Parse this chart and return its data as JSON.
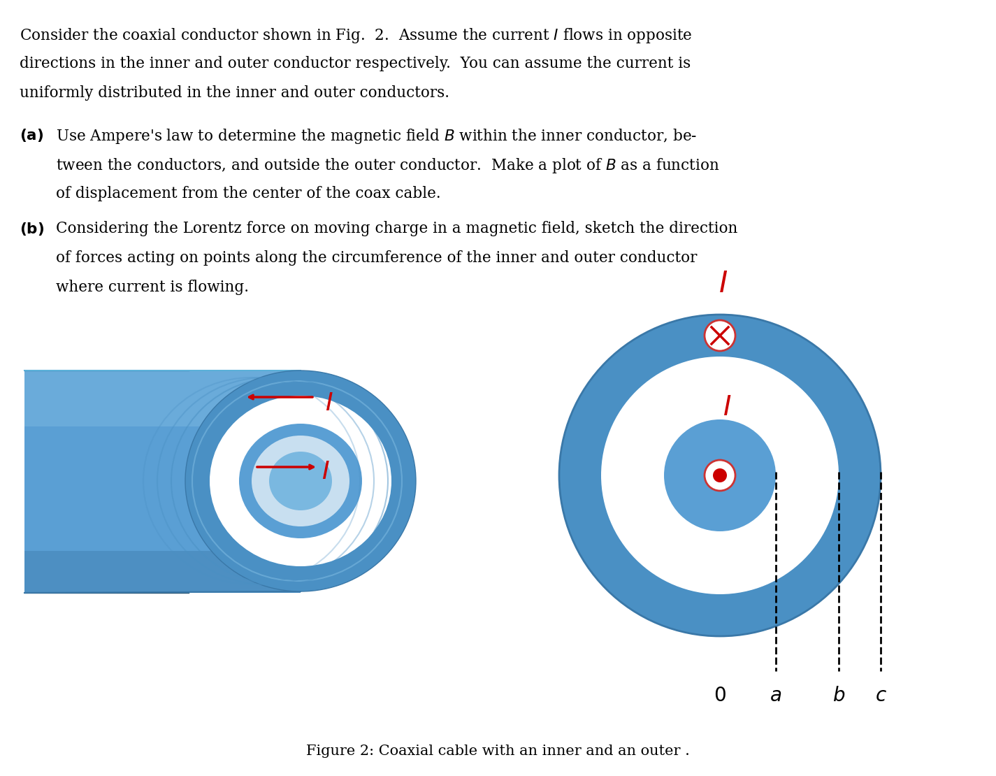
{
  "text_block": "Consider the coaxial conductor shown in Fig.  2.  Assume the current $I$ flows in opposite\ndirections in the inner and outer conductor respectively.  You can assume the current is\nuniformly distributed in the inner and outer conductors.",
  "part_a": "(a)  Use Ampere’s law to determine the magnetic field $B$ within the inner conductor, be-\n     tween the conductors, and outside the outer conductor.  Make a plot of $B$ as a function\n     of displacement from the center of the coax cable.",
  "part_b": "(b)  Considering the Lorentz force on moving charge in a magnetic field, sketch the direction\n     of forces acting on points along the circumference of the inner and outer conductor\n     where current is flowing.",
  "caption": "Figure 2: Coaxial cable with an inner and an outer .",
  "blue_outer": "#4a90c4",
  "blue_mid": "#6aaad4",
  "blue_light": "#a8cce4",
  "blue_inner": "#5a9fd4",
  "red_color": "#cc0000",
  "bg_color": "#ffffff"
}
